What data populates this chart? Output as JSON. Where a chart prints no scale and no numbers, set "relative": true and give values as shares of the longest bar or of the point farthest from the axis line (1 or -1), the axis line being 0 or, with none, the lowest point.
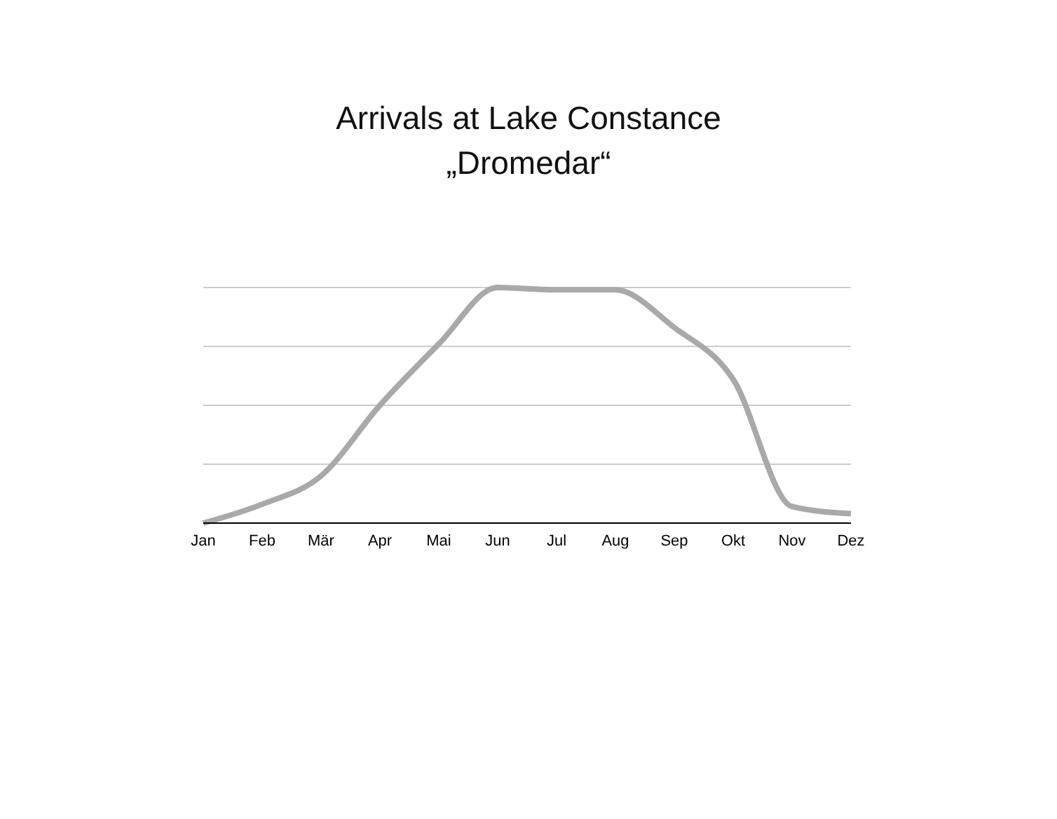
{
  "chart_data": {
    "type": "line",
    "title": "Arrivals at Lake Constance",
    "subtitle": "„Dromedar“",
    "relative": true,
    "grid": "y",
    "marker": "none",
    "line_style": "solid",
    "categories": [
      "Jan",
      "Feb",
      "Mär",
      "Apr",
      "Mai",
      "Jun",
      "Jul",
      "Aug",
      "Sep",
      "Okt",
      "Nov",
      "Dez"
    ],
    "series": [
      {
        "color": "#a9a9a9",
        "values": [
          0,
          0.08,
          0.2,
          0.5,
          0.76,
          1,
          0.99,
          0.99,
          0.83,
          0.61,
          0.07,
          0.04
        ]
      }
    ]
  }
}
